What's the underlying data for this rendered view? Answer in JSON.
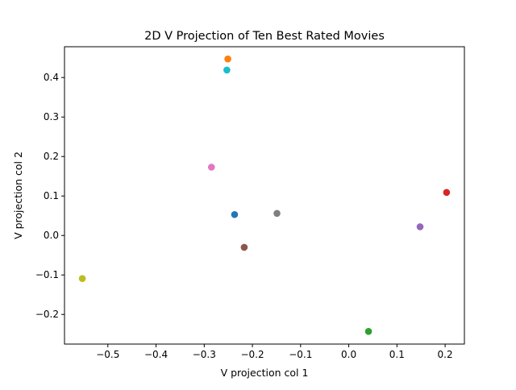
{
  "chart_data": {
    "type": "scatter",
    "title": "2D V Projection of Ten Best Rated Movies",
    "xlabel": "V projection col 1",
    "ylabel": "V projection col 2",
    "xlim": [
      -0.59,
      0.24
    ],
    "ylim": [
      -0.275,
      0.478
    ],
    "xticks": [
      -0.5,
      -0.4,
      -0.3,
      -0.2,
      -0.1,
      0.0,
      0.1,
      0.2
    ],
    "xtick_labels": [
      "−0.5",
      "−0.4",
      "−0.3",
      "−0.2",
      "−0.1",
      "0.0",
      "0.1",
      "0.2"
    ],
    "yticks": [
      -0.2,
      -0.1,
      0.0,
      0.1,
      0.2,
      0.3,
      0.4
    ],
    "ytick_labels": [
      "−0.2",
      "−0.1",
      "0.0",
      "0.1",
      "0.2",
      "0.3",
      "0.4"
    ],
    "grid": false,
    "legend": "none",
    "points": [
      {
        "x": -0.237,
        "y": 0.053,
        "color": "#1f77b4"
      },
      {
        "x": -0.251,
        "y": 0.447,
        "color": "#ff7f0e"
      },
      {
        "x": 0.041,
        "y": -0.243,
        "color": "#2ca02c"
      },
      {
        "x": 0.203,
        "y": 0.109,
        "color": "#d62728"
      },
      {
        "x": 0.148,
        "y": 0.022,
        "color": "#9467bd"
      },
      {
        "x": -0.217,
        "y": -0.03,
        "color": "#8c564b"
      },
      {
        "x": -0.285,
        "y": 0.173,
        "color": "#e377c2"
      },
      {
        "x": -0.149,
        "y": 0.056,
        "color": "#7f7f7f"
      },
      {
        "x": -0.553,
        "y": -0.109,
        "color": "#bcbd22"
      },
      {
        "x": -0.253,
        "y": 0.419,
        "color": "#17becf"
      }
    ]
  }
}
